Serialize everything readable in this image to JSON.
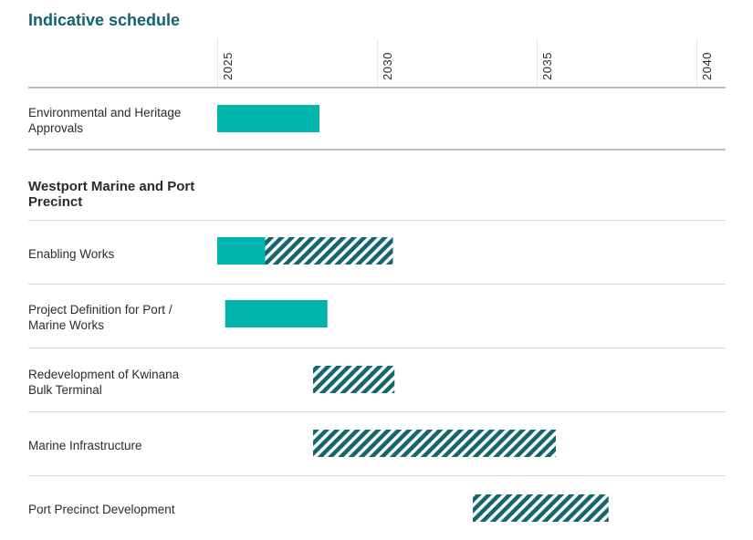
{
  "chart_data": {
    "type": "gantt",
    "title": "Indicative schedule",
    "x_ticks": [
      "2025",
      "2030",
      "2035",
      "2040"
    ],
    "xlim": [
      2025,
      2040
    ],
    "colors": {
      "solid": "#00b5ad",
      "hatched": "#15666f"
    },
    "rows": [
      {
        "label": "Environmental and Heritage Approvals",
        "segments": [
          {
            "start": 2025.0,
            "end": 2028.2,
            "style": "solid"
          }
        ]
      },
      {
        "label": "Westport Marine and Port Precinct",
        "section": true,
        "segments": []
      },
      {
        "label": "Enabling Works",
        "segments": [
          {
            "start": 2025.0,
            "end": 2026.5,
            "style": "solid"
          },
          {
            "start": 2026.5,
            "end": 2030.5,
            "style": "hatched"
          }
        ]
      },
      {
        "label": "Project Definition for Port / Marine Works",
        "segments": [
          {
            "start": 2025.25,
            "end": 2028.45,
            "style": "solid"
          }
        ]
      },
      {
        "label": "Redevelopment of Kwinana Bulk Terminal",
        "segments": [
          {
            "start": 2028.0,
            "end": 2030.55,
            "style": "hatched"
          }
        ]
      },
      {
        "label": "Marine Infrastructure",
        "segments": [
          {
            "start": 2028.0,
            "end": 2035.6,
            "style": "hatched"
          }
        ]
      },
      {
        "label": "Port Precinct Development",
        "segments": [
          {
            "start": 2033.0,
            "end": 2037.25,
            "style": "hatched"
          }
        ]
      }
    ]
  }
}
